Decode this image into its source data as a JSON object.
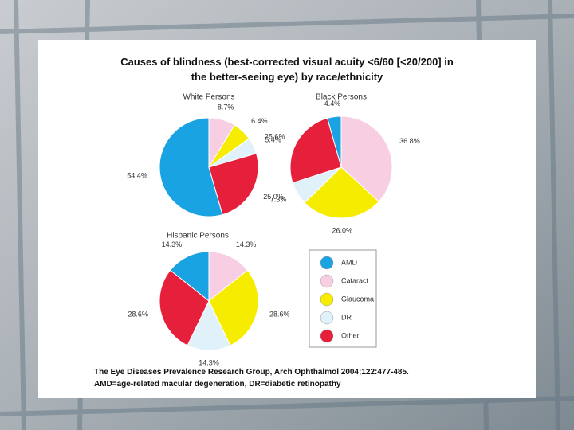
{
  "title": "Causes of blindness (best-corrected visual acuity <6/60 [<20/200] in the better-seeing eye) by race/ethnicity",
  "footnotes": [
    "The Eye Diseases Prevalence Research Group,   Arch Ophthalmol 2004;122:477-485.",
    "AMD=age-related macular degeneration, DR=diabetic retinopathy"
  ],
  "chart_data": [
    {
      "type": "pie",
      "title": "White Persons",
      "categories": [
        "AMD",
        "Cataract",
        "Glaucoma",
        "DR",
        "Other"
      ],
      "colors": [
        "#1aa3e2",
        "#f8cfe2",
        "#f6ec00",
        "#e0f1f9",
        "#e61f3b"
      ],
      "values": [
        54.4,
        8.7,
        6.4,
        5.4,
        25.0
      ],
      "value_labels": [
        "54.4%",
        "8.7%",
        "6.4%",
        "5.4%",
        "25.0%"
      ]
    },
    {
      "type": "pie",
      "title": "Black Persons",
      "categories": [
        "AMD",
        "Cataract",
        "Glaucoma",
        "DR",
        "Other"
      ],
      "colors": [
        "#1aa3e2",
        "#f8cfe2",
        "#f6ec00",
        "#e0f1f9",
        "#e61f3b"
      ],
      "values": [
        4.4,
        36.8,
        26.0,
        7.3,
        25.6
      ],
      "value_labels": [
        "4.4%",
        "36.8%",
        "26.0%",
        "7.3%",
        "25.6%"
      ]
    },
    {
      "type": "pie",
      "title": "Hispanic Persons",
      "categories": [
        "AMD",
        "Cataract",
        "Glaucoma",
        "DR",
        "Other"
      ],
      "colors": [
        "#1aa3e2",
        "#f8cfe2",
        "#f6ec00",
        "#e0f1f9",
        "#e61f3b"
      ],
      "values": [
        14.3,
        14.3,
        28.6,
        14.3,
        28.6
      ],
      "value_labels": [
        "14.3%",
        "14.3%",
        "28.6%",
        "14.3%",
        "28.6%"
      ]
    }
  ]
}
